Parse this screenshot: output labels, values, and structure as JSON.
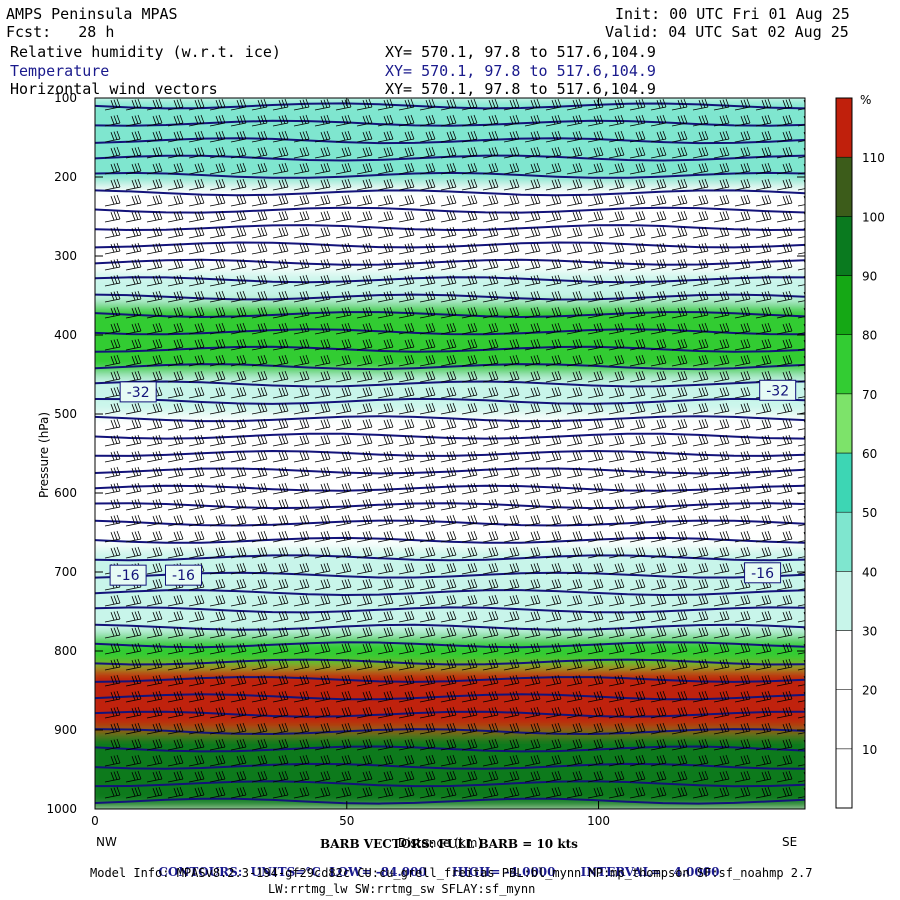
{
  "header": {
    "model_name": "AMPS Peninsula MPAS",
    "forecast": "Fcst:   28 h",
    "init": "Init: 00 UTC Fri 01 Aug 25",
    "valid": "Valid: 04 UTC Sat 02 Aug 25",
    "fields": [
      {
        "name": "Relative humidity (w.r.t. ice)",
        "xy": "XY= 570.1, 97.8 to 517.6,104.9",
        "color": "#000000"
      },
      {
        "name": "Temperature",
        "xy": "XY= 570.1, 97.8 to 517.6,104.9",
        "color": "#1a1a8c"
      },
      {
        "name": "Horizontal wind vectors",
        "xy": "XY= 570.1, 97.8 to 517.6,104.9",
        "color": "#000000"
      }
    ]
  },
  "chart_data": {
    "type": "heatmap",
    "ylabel": "Pressure (hPa)",
    "xlabel": "Distance (km)",
    "x_ticks": [
      0,
      50,
      100
    ],
    "y_ticks": [
      100,
      200,
      300,
      400,
      500,
      600,
      700,
      800,
      900,
      1000
    ],
    "xlim": [
      0,
      141
    ],
    "ylim": [
      1000,
      100
    ],
    "y_log": false,
    "left_label": "NW",
    "right_label": "SE",
    "colorbar": {
      "unit": "%",
      "levels": [
        10,
        20,
        30,
        40,
        50,
        60,
        70,
        80,
        90,
        100,
        110
      ],
      "colors": [
        "#ffffff",
        "#ffffff",
        "#ffffff",
        "#c8f5ea",
        "#7fe6cf",
        "#3dd6b4",
        "#7de36a",
        "#33cc33",
        "#15a815",
        "#0a7a1f",
        "#3c5c1a",
        "#c0200c"
      ]
    },
    "rh_bands": [
      {
        "p": [
          100,
          210
        ],
        "rh": 45
      },
      {
        "p": [
          210,
          320
        ],
        "rh": 25
      },
      {
        "p": [
          320,
          360
        ],
        "rh": 35
      },
      {
        "p": [
          360,
          450
        ],
        "rh": 75
      },
      {
        "p": [
          450,
          500
        ],
        "rh": 35
      },
      {
        "p": [
          500,
          670
        ],
        "rh": 15
      },
      {
        "p": [
          670,
          780
        ],
        "rh": 35
      },
      {
        "p": [
          780,
          820
        ],
        "rh": 75
      },
      {
        "p": [
          820,
          900
        ],
        "rh": 110
      },
      {
        "p": [
          900,
          1000
        ],
        "rh": 95
      }
    ],
    "temperature_contours": {
      "units": "°C",
      "low": "-84.000",
      "high": "-4.0000",
      "interval": "4.0000",
      "labels": [
        {
          "text": "-32",
          "x": 5,
          "p": 472
        },
        {
          "text": "-32",
          "x": 132,
          "p": 470
        },
        {
          "text": "-16",
          "x": 3,
          "p": 704
        },
        {
          "text": "-16",
          "x": 14,
          "p": 704
        },
        {
          "text": "-16",
          "x": 129,
          "p": 701
        }
      ]
    },
    "barb_legend": "BARB VECTORS: FULL BARB = 10 kts"
  },
  "footer": {
    "contours_label": "CONTOURS:",
    "units_label": "UNITS=°C",
    "low_label": "LOW=",
    "low_value": "-84.000",
    "high_label": "HIGH=",
    "high_value": "-4.0000",
    "interval_label": "INTERVAL=",
    "interval_value": "4.0000",
    "model_info": "Model Info: MPASv8.2.3-194-gf29cd82c CU:cu_grell_freitas PBL:bl_mynn MP:mp_thompson SF:sf_noahmp 2.7",
    "model_info2": "LW:rrtmg_lw SW:rrtmg_sw SFLAY:sf_mynn"
  }
}
